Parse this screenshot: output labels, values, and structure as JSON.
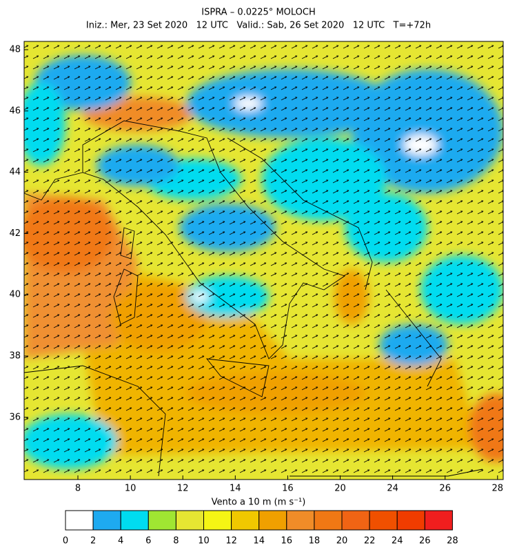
{
  "title": "ISPRA – 0.0225° MOLOCH",
  "subtitle": "Iniz.: Mer, 23 Set 2020   12 UTC   Valid.: Sab, 26 Set 2020   12 UTC   T=+72h",
  "map": {
    "lon_labels": [
      8,
      10,
      12,
      14,
      16,
      20,
      24,
      26,
      28
    ],
    "lat_labels": [
      48,
      46,
      44,
      42,
      40,
      38,
      36
    ]
  },
  "colorbar": {
    "label": "Vento a 10 m (m s⁻¹)",
    "bounds": [
      0,
      2,
      4,
      6,
      8,
      10,
      12,
      14,
      16,
      18,
      20,
      22,
      24,
      26,
      28
    ],
    "colors": [
      "#ffffff",
      "#1eaaf0",
      "#00dcf0",
      "#a0e632",
      "#e6e632",
      "#f5f514",
      "#f0c800",
      "#f0a000",
      "#f08c28",
      "#f07814",
      "#f06414",
      "#f05000",
      "#f03c00",
      "#f01e1e"
    ]
  }
}
